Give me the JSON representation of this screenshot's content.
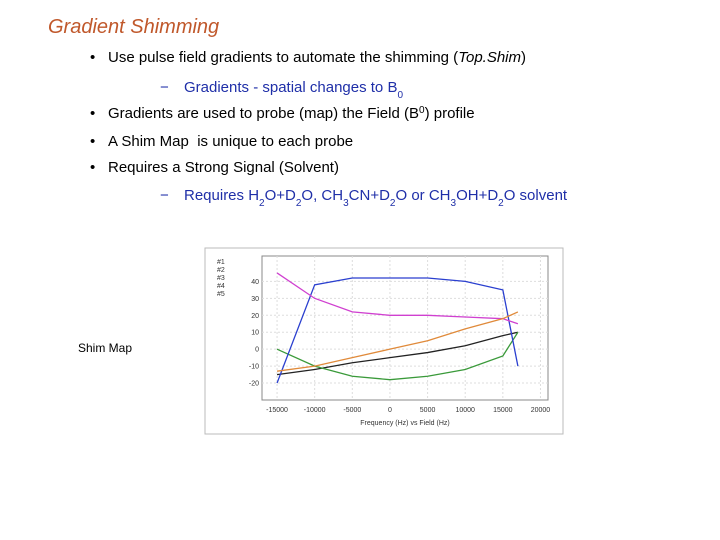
{
  "header": {
    "title": "Gradient Shimming"
  },
  "bullets": [
    {
      "level": 1,
      "runs": [
        {
          "text": "Use pulse field gradients to automate the shimming ("
        },
        {
          "text": "Top.Shim",
          "italic": true
        },
        {
          "text": ")"
        }
      ]
    },
    {
      "level": 2,
      "runs": [
        {
          "text": "Gradients - spatial changes to B"
        },
        {
          "text": "0",
          "sub": true
        }
      ]
    },
    {
      "level": 1,
      "runs": [
        {
          "text": "Gradients are used to probe (map) the Field (B"
        },
        {
          "text": "0",
          "sup": true
        },
        {
          "text": ") profile"
        }
      ]
    },
    {
      "level": 1,
      "runs": [
        {
          "text": "A Shim Map  is unique to each probe"
        }
      ]
    },
    {
      "level": 1,
      "runs": [
        {
          "text": "Requires a Strong Signal (Solvent)"
        }
      ]
    },
    {
      "level": 2,
      "runs": [
        {
          "text": "Requires H"
        },
        {
          "text": "2",
          "sub": true
        },
        {
          "text": "O+D"
        },
        {
          "text": "2",
          "sub": true
        },
        {
          "text": "O, CH"
        },
        {
          "text": "3",
          "sub": true
        },
        {
          "text": "CN+D"
        },
        {
          "text": "2",
          "sub": true
        },
        {
          "text": "O or CH"
        },
        {
          "text": "3",
          "sub": true
        },
        {
          "text": "OH+D"
        },
        {
          "text": "2",
          "sub": true
        },
        {
          "text": "O solvent"
        }
      ]
    }
  ],
  "figure_caption": "Shim Map",
  "figure": {
    "type": "line",
    "xlabel": "Frequency (Hz) vs Field (Hz)",
    "x": [
      -15000,
      -10000,
      -5000,
      0,
      5000,
      10000,
      15000,
      17000
    ],
    "series": [
      {
        "name": "#1",
        "color": "#222222",
        "values": [
          -15,
          -12,
          -8,
          -5,
          -2,
          2,
          8,
          10
        ]
      },
      {
        "name": "#2",
        "color": "#3a9a3a",
        "values": [
          0,
          -10,
          -16,
          -18,
          -16,
          -12,
          -4,
          10
        ]
      },
      {
        "name": "#3",
        "color": "#2a3fcf",
        "values": [
          -20,
          38,
          42,
          42,
          42,
          40,
          35,
          -10
        ]
      },
      {
        "name": "#4",
        "color": "#d040d0",
        "values": [
          45,
          30,
          22,
          20,
          20,
          19,
          18,
          15
        ]
      },
      {
        "name": "#5",
        "color": "#e08a3a",
        "values": [
          -13,
          -10,
          -5,
          0,
          5,
          12,
          18,
          22
        ]
      }
    ],
    "xlim": [
      -17000,
      21000
    ],
    "xticks": [
      -15000,
      -10000,
      -5000,
      0,
      5000,
      10000,
      15000,
      20000
    ],
    "ylim": [
      -30,
      55
    ],
    "yticks": [
      40,
      30,
      20,
      10,
      0,
      -10,
      -20
    ],
    "grid": true
  }
}
